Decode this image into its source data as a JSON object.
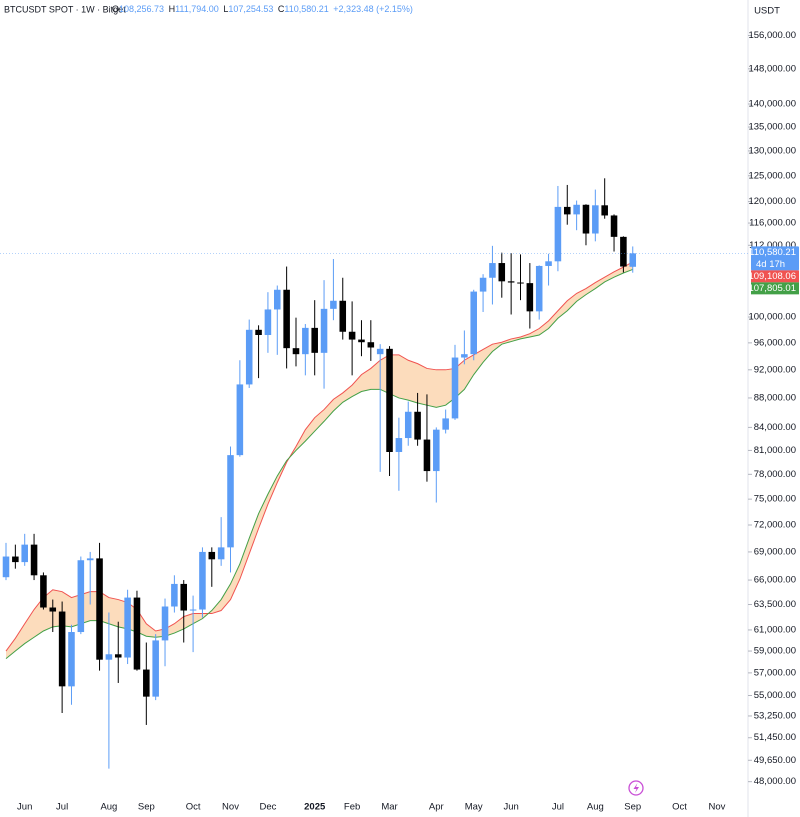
{
  "chart_data": {
    "type": "candlestick",
    "title": "BTCUSDT SPOT · 1W · Bitget",
    "ohlc_legend": [
      {
        "key": "O",
        "value": "108,256.73"
      },
      {
        "key": "H",
        "value": "111,794.00"
      },
      {
        "key": "L",
        "value": "107,254.53"
      },
      {
        "key": "C",
        "value": "110,580.21"
      }
    ],
    "change": "+2,323.48 (+2.15%)",
    "y_unit": "USDT",
    "log_scale": true,
    "up_color": "#5b9cf6",
    "down_color": "#000000",
    "categories": [
      null,
      null,
      "Jun",
      null,
      null,
      null,
      "Jul",
      null,
      null,
      null,
      null,
      "Aug",
      null,
      null,
      null,
      "Sep",
      null,
      null,
      null,
      null,
      "Oct",
      null,
      null,
      null,
      "Nov",
      null,
      null,
      null,
      "Dec",
      null,
      null,
      null,
      null,
      "2025",
      null,
      null,
      null,
      "Feb",
      null,
      null,
      null,
      "Mar",
      null,
      null,
      null,
      null,
      "Apr",
      null,
      null,
      null,
      "May",
      null,
      null,
      null,
      "Jun",
      null,
      null,
      null,
      null,
      "Jul",
      null,
      null,
      null,
      "Aug",
      null,
      null,
      null,
      "Sep",
      null,
      null,
      null,
      null,
      "Oct",
      null,
      null,
      null,
      "Nov",
      null,
      null,
      null
    ],
    "open": [
      66300,
      68500,
      67900,
      69800,
      66500,
      63200,
      62800,
      55800,
      60800,
      68100,
      68300,
      58200,
      58700,
      58400,
      64200,
      57300,
      54900,
      60000,
      63300,
      65600,
      62900,
      63000,
      69000,
      68200,
      69500,
      80400,
      89900,
      98000,
      97200,
      101200,
      104400,
      95200,
      94300,
      98300,
      94500,
      101300,
      102600,
      97700,
      96500,
      96100,
      94300,
      95100,
      80800,
      82600,
      86100,
      82400,
      78400,
      83700,
      85200,
      93800,
      94300,
      104100,
      106400,
      108900,
      105800,
      105600,
      105500,
      100900,
      108400,
      109200,
      119000,
      117600,
      119400,
      114100,
      119300,
      117400,
      113500,
      108256.73,
      null,
      null,
      null,
      null,
      null,
      null,
      null,
      null,
      null,
      null,
      null,
      null
    ],
    "high": [
      70000,
      69800,
      71000,
      71000,
      66800,
      64000,
      63800,
      61500,
      68500,
      69000,
      70000,
      62700,
      61800,
      65000,
      64900,
      59800,
      60600,
      64100,
      66500,
      66000,
      64400,
      69500,
      69500,
      72900,
      81500,
      93400,
      99600,
      98700,
      104000,
      105100,
      108300,
      99900,
      98900,
      102700,
      106000,
      109600,
      106400,
      102500,
      99500,
      99500,
      95800,
      95500,
      85300,
      87500,
      88700,
      88500,
      84000,
      86400,
      95700,
      97900,
      104400,
      107000,
      111900,
      110700,
      110600,
      110400,
      108900,
      108500,
      110500,
      123000,
      123200,
      120200,
      119500,
      122300,
      124500,
      117600,
      113600,
      111794,
      null,
      null,
      null,
      null,
      null,
      null,
      null,
      null,
      null,
      null,
      null,
      null
    ],
    "low": [
      66000,
      67200,
      67500,
      66000,
      63000,
      60800,
      53500,
      54200,
      60600,
      63500,
      57200,
      49000,
      56100,
      57800,
      57200,
      52500,
      54600,
      57600,
      62700,
      59800,
      58900,
      62200,
      65300,
      67500,
      66800,
      80200,
      89400,
      90800,
      94500,
      94200,
      92200,
      92500,
      91200,
      91200,
      89300,
      99500,
      96500,
      91200,
      94000,
      93300,
      78300,
      77800,
      76000,
      81600,
      81600,
      77100,
      74600,
      83200,
      85000,
      92800,
      93400,
      100800,
      102000,
      103100,
      100400,
      102700,
      98200,
      99600,
      105100,
      107500,
      115700,
      114700,
      112000,
      112700,
      116800,
      110900,
      107300,
      107254.53,
      null,
      null,
      null,
      null,
      null,
      null,
      null,
      null,
      null,
      null,
      null,
      null
    ],
    "close": [
      68500,
      67900,
      69800,
      66500,
      63200,
      62800,
      55800,
      60800,
      68100,
      68300,
      58200,
      58700,
      58400,
      64200,
      57300,
      54900,
      60000,
      63300,
      65600,
      62900,
      63000,
      69000,
      68200,
      69500,
      80400,
      89900,
      98000,
      97200,
      101200,
      104400,
      95200,
      94300,
      98300,
      94500,
      101300,
      102600,
      97700,
      96500,
      96100,
      95300,
      95100,
      80800,
      82600,
      86100,
      82400,
      78400,
      83700,
      85200,
      93800,
      94300,
      104100,
      106400,
      108900,
      105800,
      105600,
      105500,
      100900,
      108400,
      109200,
      119000,
      117600,
      119400,
      114100,
      119300,
      117400,
      113500,
      108300,
      110580.21,
      null,
      null,
      null,
      null,
      null,
      null,
      null,
      null,
      null,
      null,
      null,
      null
    ],
    "last_price": {
      "label": "110,580.21",
      "countdown": "4d 17h",
      "color": "#5b9cf6"
    },
    "band_fill": "#fcdcbc",
    "overlays": [
      {
        "color": "#f05350",
        "last_label": "109,108.06",
        "values": [
          59000,
          60200,
          61600,
          63000,
          64200,
          65000,
          64800,
          64200,
          64500,
          64800,
          64800,
          64200,
          64000,
          63700,
          63000,
          61600,
          60900,
          61100,
          61600,
          62300,
          62600,
          62600,
          62600,
          62900,
          64000,
          66100,
          68800,
          71600,
          74400,
          77000,
          79500,
          81500,
          83700,
          85300,
          86400,
          87800,
          88700,
          89800,
          91300,
          92200,
          93400,
          94200,
          94200,
          93400,
          92900,
          92200,
          92000,
          92000,
          92200,
          93400,
          94200,
          95000,
          95800,
          96100,
          96600,
          96900,
          97400,
          98200,
          99400,
          101000,
          102600,
          103800,
          104600,
          105600,
          106500,
          107400,
          108200,
          109108.06,
          null,
          null,
          null,
          null,
          null,
          null,
          null,
          null,
          null,
          null,
          null,
          null
        ]
      },
      {
        "color": "#43a047",
        "last_label": "107,805.01",
        "values": [
          58300,
          59000,
          59700,
          60300,
          60900,
          61300,
          61400,
          61300,
          61600,
          61900,
          61900,
          61600,
          61300,
          61100,
          60800,
          60400,
          60300,
          60400,
          60700,
          61100,
          61600,
          62100,
          62900,
          64000,
          65600,
          67700,
          70500,
          73300,
          75600,
          77800,
          79700,
          81000,
          82200,
          83500,
          84800,
          86200,
          87400,
          88200,
          88900,
          89200,
          89200,
          88600,
          88000,
          87700,
          87300,
          87000,
          86700,
          87000,
          88000,
          89200,
          91300,
          93100,
          94700,
          95800,
          96200,
          96600,
          96900,
          97200,
          98200,
          99800,
          101000,
          102500,
          103600,
          104600,
          105700,
          106500,
          107200,
          107805.01,
          null,
          null,
          null,
          null,
          null,
          null,
          null,
          null,
          null,
          null,
          null,
          null
        ]
      }
    ],
    "ylim": [
      47000,
      165000
    ],
    "yticks": [
      {
        "value": 156000,
        "label": "156,000.00"
      },
      {
        "value": 148000,
        "label": "148,000.00"
      },
      {
        "value": 140000,
        "label": "140,000.00"
      },
      {
        "value": 135000,
        "label": "135,000.00"
      },
      {
        "value": 130000,
        "label": "130,000.00"
      },
      {
        "value": 125000,
        "label": "125,000.00"
      },
      {
        "value": 120000,
        "label": "120,000.00"
      },
      {
        "value": 116000,
        "label": "116,000.00"
      },
      {
        "value": 112000,
        "label": "112,000.00"
      },
      {
        "value": 100000,
        "label": "100,000.00"
      },
      {
        "value": 96000,
        "label": "96,000.00"
      },
      {
        "value": 92000,
        "label": "92,000.00"
      },
      {
        "value": 88000,
        "label": "88,000.00"
      },
      {
        "value": 84000,
        "label": "84,000.00"
      },
      {
        "value": 81000,
        "label": "81,000.00"
      },
      {
        "value": 78000,
        "label": "78,000.00"
      },
      {
        "value": 75000,
        "label": "75,000.00"
      },
      {
        "value": 72000,
        "label": "72,000.00"
      },
      {
        "value": 69000,
        "label": "69,000.00"
      },
      {
        "value": 66000,
        "label": "66,000.00"
      },
      {
        "value": 63500,
        "label": "63,500.00"
      },
      {
        "value": 61000,
        "label": "61,000.00"
      },
      {
        "value": 59000,
        "label": "59,000.00"
      },
      {
        "value": 57000,
        "label": "57,000.00"
      },
      {
        "value": 55000,
        "label": "55,000.00"
      },
      {
        "value": 53250,
        "label": "53,250.00"
      },
      {
        "value": 51450,
        "label": "51,450.00"
      },
      {
        "value": 49650,
        "label": "49,650.00"
      },
      {
        "value": 48000,
        "label": "48,000.00"
      }
    ]
  }
}
